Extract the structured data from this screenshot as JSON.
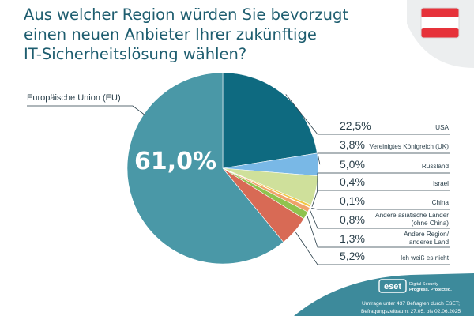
{
  "title_lines": [
    "Aus welcher Region würden Sie bevorzugt",
    "einen neuen Anbieter Ihrer zukünftige",
    "IT-Sicherheitslösung wählen?"
  ],
  "colors": {
    "title": "#1e5d6f",
    "text": "#2a3f4a",
    "leader": "#2a3f4a",
    "footer_bg": "#3d8a9b",
    "corner_bg": "#eceeef",
    "flag_red": "#e6323a",
    "flag_white": "#ffffff"
  },
  "flag_icon": "austria-flag-icon",
  "logo_icon": "eset-logo-icon",
  "brand": {
    "logo_text": "eset",
    "tagline_1": "Digital Security",
    "tagline_2": "Progress. Protected."
  },
  "footer": {
    "line_1": "Umfrage unter 437 Befragten durch ESET;",
    "line_2": "Befragungszeitraum: 27.05. bis 02.06.2025"
  },
  "chart_data": {
    "type": "pie",
    "title": "Aus welcher Region würden Sie bevorzugt einen neuen Anbieter Ihrer zukünftige IT-Sicherheitslösung wählen?",
    "unit": "%",
    "big_label": "61,0%",
    "slices": [
      {
        "label": "Europäische Union (EU)",
        "value": 61.0,
        "display": "61,0%",
        "color": "#4a98a7"
      },
      {
        "label": "USA",
        "value": 22.5,
        "display": "22,5%",
        "color": "#0e6a80"
      },
      {
        "label": "Vereinigtes Königreich (UK)",
        "value": 3.8,
        "display": "3,8%",
        "color": "#79b8e6"
      },
      {
        "label": "Russland",
        "value": 5.0,
        "display": "5,0%",
        "color": "#cfe09b"
      },
      {
        "label": "Israel",
        "value": 0.4,
        "display": "0,4%",
        "color": "#f2c744"
      },
      {
        "label": "China",
        "value": 0.1,
        "display": "0,1%",
        "color": "#e8d87a"
      },
      {
        "label": "Andere asiatische Länder (ohne China)",
        "label_lines": [
          "Andere asiatische Länder",
          "(ohne China)"
        ],
        "value": 0.8,
        "display": "0,8%",
        "color": "#f0a36a"
      },
      {
        "label": "Andere Region/ anderes Land",
        "label_lines": [
          "Andere Region/",
          "anderes Land"
        ],
        "value": 1.3,
        "display": "1,3%",
        "color": "#8fc34e"
      },
      {
        "label": "Ich weiß es nicht",
        "value": 5.2,
        "display": "5,2%",
        "color": "#d86a55"
      }
    ]
  }
}
